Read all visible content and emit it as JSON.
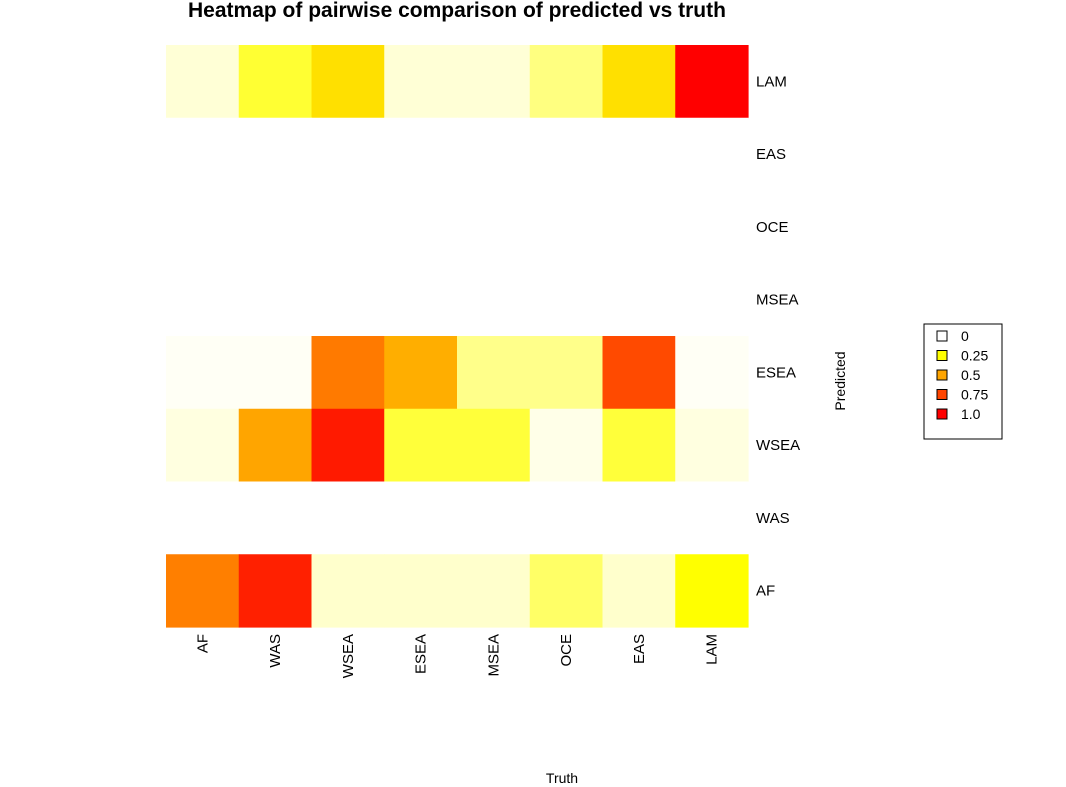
{
  "chart_data": {
    "type": "heatmap",
    "title": "Heatmap of pairwise comparison of predicted vs truth",
    "xlabel": "Truth",
    "ylabel": "Predicted",
    "x_categories": [
      "AF",
      "WAS",
      "WSEA",
      "ESEA",
      "MSEA",
      "OCE",
      "EAS",
      "LAM"
    ],
    "y_categories_top_to_bottom": [
      "LAM",
      "EAS",
      "OCE",
      "MSEA",
      "ESEA",
      "WSEA",
      "WAS",
      "AF"
    ],
    "rows": [
      {
        "predicted": "LAM",
        "fills": [
          "#FFFFD6",
          "#FFFF33",
          "#FFE000",
          "#FFFFD6",
          "#FFFFD6",
          "#FFFF80",
          "#FFE000",
          "#FF0000"
        ]
      },
      {
        "predicted": "EAS",
        "fills": [
          "#FFFFFF",
          "#FFFFFF",
          "#FFFFFF",
          "#FFFFFF",
          "#FFFFFF",
          "#FFFFFF",
          "#FFFFFF",
          "#FFFFFF"
        ]
      },
      {
        "predicted": "OCE",
        "fills": [
          "#FFFFFF",
          "#FFFFFF",
          "#FFFFFF",
          "#FFFFFF",
          "#FFFFFF",
          "#FFFFFF",
          "#FFFFFF",
          "#FFFFFF"
        ]
      },
      {
        "predicted": "MSEA",
        "fills": [
          "#FFFFFF",
          "#FFFFFF",
          "#FFFFFF",
          "#FFFFFF",
          "#FFFFFF",
          "#FFFFFF",
          "#FFFFFF",
          "#FFFFFF"
        ]
      },
      {
        "predicted": "ESEA",
        "fills": [
          "#FFFFF5",
          "#FFFFF5",
          "#FF7A00",
          "#FFAE00",
          "#FFFF8A",
          "#FFFF8A",
          "#FF4A00",
          "#FFFFF5"
        ]
      },
      {
        "predicted": "WSEA",
        "fills": [
          "#FFFFE0",
          "#FFA500",
          "#FF1A00",
          "#FFFF3A",
          "#FFFF3A",
          "#FFFFE8",
          "#FFFF3A",
          "#FFFFE0"
        ]
      },
      {
        "predicted": "WAS",
        "fills": [
          "#FFFFFF",
          "#FFFFFF",
          "#FFFFFF",
          "#FFFFFF",
          "#FFFFFF",
          "#FFFFFF",
          "#FFFFFF",
          "#FFFFFF"
        ]
      },
      {
        "predicted": "AF",
        "fills": [
          "#FF7F00",
          "#FF2000",
          "#FFFFCC",
          "#FFFFCC",
          "#FFFFCC",
          "#FFFF66",
          "#FFFFCC",
          "#FFFF00"
        ]
      }
    ],
    "legend": {
      "placement": "right",
      "entries": [
        {
          "label": "0",
          "color": "#FFFFFF"
        },
        {
          "label": "0.25",
          "color": "#FFFF00"
        },
        {
          "label": "0.5",
          "color": "#FFA500"
        },
        {
          "label": "0.75",
          "color": "#FF4500"
        },
        {
          "label": "1.0",
          "color": "#FF0000"
        }
      ]
    }
  }
}
